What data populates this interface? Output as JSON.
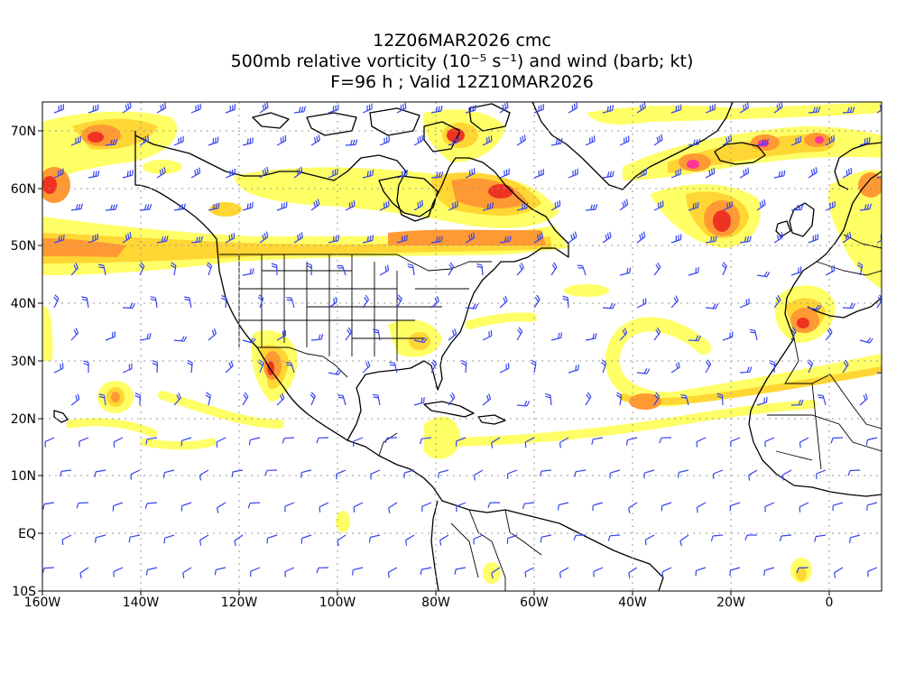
{
  "title": {
    "line1": "12Z06MAR2026 cmc",
    "line2": "500mb relative vorticity (10⁻⁵ s⁻¹) and wind (barb; kt)",
    "line3": "F=96 h ; Valid 12Z10MAR2026"
  },
  "map": {
    "lat_labels": [
      "70N",
      "60N",
      "50N",
      "40N",
      "30N",
      "20N",
      "10N",
      "EQ",
      "10S"
    ],
    "lon_labels": [
      "160W",
      "140W",
      "120W",
      "100W",
      "80W",
      "60W",
      "40W",
      "20W",
      "0"
    ],
    "lat_range": [
      -10,
      75
    ],
    "lon_range": [
      -160,
      10
    ],
    "grid": "dotted",
    "fill_colors": {
      "light_yellow": "#ffff66",
      "yellow_orange": "#ffd633",
      "orange": "#ff9933",
      "red": "#ee3322",
      "magenta": "#ff3399"
    },
    "barb_color": "#3344ee",
    "coast_color": "#000000"
  }
}
